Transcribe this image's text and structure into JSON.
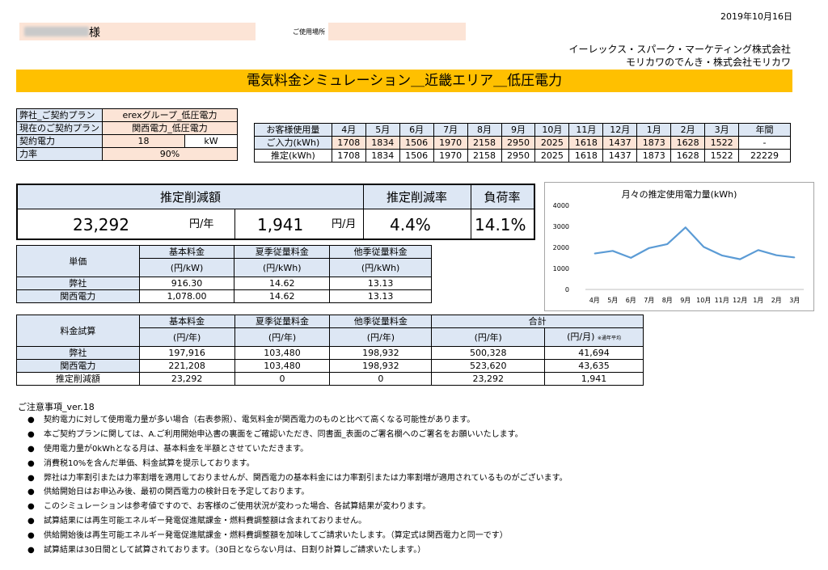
{
  "header": {
    "date": "2019年10月16日",
    "customer_suffix": "様",
    "place_label": "ご使用場所",
    "company_line1": "イーレックス・スパーク・マーケティング株式会社",
    "company_line2": "モリカワのでんき・株式会社モリカワ",
    "title": "電気料金シミュレーション＿近畿エリア＿低圧電力"
  },
  "plan": {
    "rows": [
      {
        "label": "弊社_ご契約プラン",
        "value": "erexグループ_低圧電力",
        "unit": ""
      },
      {
        "label": "現在のご契約プラン",
        "value": "関西電力_低圧電力",
        "unit": ""
      },
      {
        "label": "契約電力",
        "value": "18",
        "unit": "kW"
      },
      {
        "label": "力率",
        "value": "90%",
        "unit": ""
      }
    ]
  },
  "usage": {
    "header_label": "お客様使用量",
    "months": [
      "4月",
      "5月",
      "6月",
      "7月",
      "8月",
      "9月",
      "10月",
      "11月",
      "12月",
      "1月",
      "2月",
      "3月"
    ],
    "annual_label": "年間",
    "input_label": "ご入力(kWh)",
    "input_values": [
      "1708",
      "1834",
      "1506",
      "1970",
      "2158",
      "2950",
      "2025",
      "1618",
      "1437",
      "1873",
      "1628",
      "1522"
    ],
    "input_annual": "-",
    "est_label": "推定(kWh)",
    "est_values": [
      "1708",
      "1834",
      "1506",
      "1970",
      "2158",
      "2950",
      "2025",
      "1618",
      "1437",
      "1873",
      "1628",
      "1522"
    ],
    "est_annual": "22229"
  },
  "summary": {
    "reduction_label": "推定削減額",
    "rate_label": "推定削減率",
    "load_label": "負荷率",
    "annual_value": "23,292",
    "annual_unit": "円/年",
    "monthly_value": "1,941",
    "monthly_unit": "円/月",
    "rate_value": "4.4%",
    "load_value": "14.1%"
  },
  "unit_price": {
    "label": "単価",
    "col1": [
      "基本料金",
      "(円/kW)"
    ],
    "col2": [
      "夏季従量料金",
      "(円/kWh)"
    ],
    "col3": [
      "他季従量料金",
      "(円/kWh)"
    ],
    "rows": [
      {
        "name": "弊社",
        "v1": "916.30",
        "v2": "14.62",
        "v3": "13.13"
      },
      {
        "name": "関西電力",
        "v1": "1,078.00",
        "v2": "14.62",
        "v3": "13.13"
      }
    ]
  },
  "fee": {
    "label": "料金試算",
    "col1": [
      "基本料金",
      "(円/年)"
    ],
    "col2": [
      "夏季従量料金",
      "(円/年)"
    ],
    "col3": [
      "他季従量料金",
      "(円/年)"
    ],
    "total_label": "合計",
    "total_year_unit": "(円/年)",
    "total_month_unit": "(円/月)",
    "total_month_note": "※通年平均",
    "rows": [
      {
        "name": "弊社",
        "v1": "197,916",
        "v2": "103,480",
        "v3": "198,932",
        "v4": "500,328",
        "v5": "41,694"
      },
      {
        "name": "関西電力",
        "v1": "221,208",
        "v2": "103,480",
        "v3": "198,932",
        "v4": "523,620",
        "v5": "43,635"
      },
      {
        "name": "推定削減額",
        "v1": "23,292",
        "v2": "0",
        "v3": "0",
        "v4": "23,292",
        "v5": "1,941"
      }
    ]
  },
  "chart_data": {
    "type": "line",
    "title": "月々の推定使用電力量(kWh)",
    "categories": [
      "4月",
      "5月",
      "6月",
      "7月",
      "8月",
      "9月",
      "10月",
      "11月",
      "12月",
      "1月",
      "2月",
      "3月"
    ],
    "values": [
      1708,
      1834,
      1506,
      1970,
      2158,
      2950,
      2025,
      1618,
      1437,
      1873,
      1628,
      1522
    ],
    "ylim": [
      0,
      4000
    ],
    "yticks": [
      "0",
      "1000",
      "2000",
      "3000",
      "4000"
    ],
    "grid": false,
    "line_color": "#5b9bd5"
  },
  "notes": {
    "title": "ご注意事項_ver.18",
    "bullet": "●",
    "items": [
      "契約電力に対して使用電力量が多い場合（右表参照）、電気料金が関西電力のものと比べて高くなる可能性があります。",
      "本ご契約プランに関しては、A.ご利用開始申込書の裏面をご確認いただき、同書面_表面のご署名欄へのご署名をお願いいたします。",
      "使用電力量が0kWhとなる月は、基本料金を半額とさせていただきます。",
      "消費税10%を含んだ単価、料金試算を提示しております。",
      "弊社は力率割引または力率割増を適用しておりませんが、関西電力の基本料金には力率割引または力率割増が適用されているものがございます。",
      "供給開始日はお申込み後、最初の関西電力の検針日を予定しております。",
      "このシミュレーションは参考値ですので、お客様のご使用状況が変わった場合、各試算結果が変わります。",
      "試算結果には再生可能エネルギー発電促進賦課金・燃料費調整額は含まれておりません。",
      "供給開始後は再生可能エネルギー発電促進賦課金・燃料費調整額を加味してご請求いたします。（算定式は関西電力と同一です）",
      "試算結果は30日間として試算されております。（30日とならない月は、日割り計算しご請求いたします。）"
    ]
  }
}
